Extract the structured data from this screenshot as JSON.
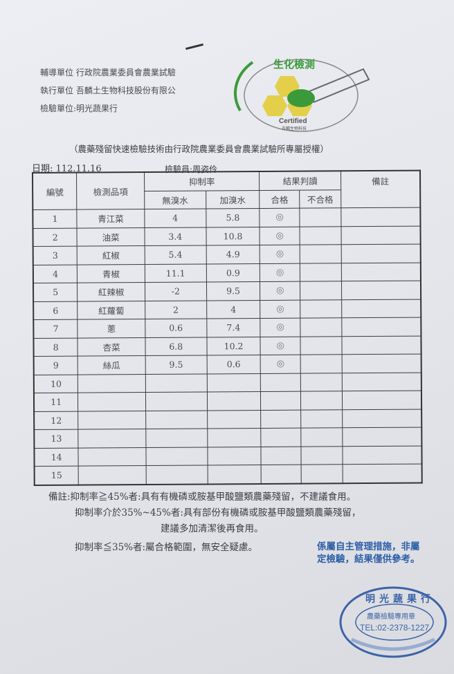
{
  "header": {
    "units": [
      {
        "label": "輔導單位",
        "value": "行政院農業委員會農業試驗"
      },
      {
        "label": "執行單位",
        "value": "吾麟土生物科技股份有限公"
      },
      {
        "label": "檢驗單位:",
        "value": "明光蔬果行"
      }
    ],
    "logo": {
      "title": "生化檢測",
      "certified": "Certified",
      "company": "吾麟生物科技"
    },
    "authorization": "（農藥殘留快速檢驗技術由行政院農業委員會農業試驗所專屬授權）",
    "date_label": "日期:",
    "date": "112.11.16",
    "inspector_label": "檢驗員:",
    "inspector": "周姿伶"
  },
  "table": {
    "headers": {
      "no": "編號",
      "item": "檢測品項",
      "inhibition": "抑制率",
      "no_bromine": "無溴水",
      "with_bromine": "加溴水",
      "result": "結果判讀",
      "pass": "合格",
      "fail": "不合格",
      "remarks": "備註"
    },
    "rows": [
      {
        "no": "1",
        "item": "青江菜",
        "no_bromine": "4",
        "with_bromine": "5.8",
        "pass": "◎",
        "fail": "",
        "remarks": ""
      },
      {
        "no": "2",
        "item": "油菜",
        "no_bromine": "3.4",
        "with_bromine": "10.8",
        "pass": "◎",
        "fail": "",
        "remarks": ""
      },
      {
        "no": "3",
        "item": "紅椒",
        "no_bromine": "5.4",
        "with_bromine": "4.9",
        "pass": "◎",
        "fail": "",
        "remarks": ""
      },
      {
        "no": "4",
        "item": "青椒",
        "no_bromine": "11.1",
        "with_bromine": "0.9",
        "pass": "◎",
        "fail": "",
        "remarks": ""
      },
      {
        "no": "5",
        "item": "紅辣椒",
        "no_bromine": "-2",
        "with_bromine": "9.5",
        "pass": "◎",
        "fail": "",
        "remarks": ""
      },
      {
        "no": "6",
        "item": "紅蘿蔔",
        "no_bromine": "2",
        "with_bromine": "4",
        "pass": "◎",
        "fail": "",
        "remarks": ""
      },
      {
        "no": "7",
        "item": "蔥",
        "no_bromine": "0.6",
        "with_bromine": "7.4",
        "pass": "◎",
        "fail": "",
        "remarks": ""
      },
      {
        "no": "8",
        "item": "杏菜",
        "no_bromine": "6.8",
        "with_bromine": "10.2",
        "pass": "◎",
        "fail": "",
        "remarks": ""
      },
      {
        "no": "9",
        "item": "絲瓜",
        "no_bromine": "9.5",
        "with_bromine": "0.6",
        "pass": "◎",
        "fail": "",
        "remarks": ""
      },
      {
        "no": "10",
        "item": "",
        "no_bromine": "",
        "with_bromine": "",
        "pass": "",
        "fail": "",
        "remarks": ""
      },
      {
        "no": "11",
        "item": "",
        "no_bromine": "",
        "with_bromine": "",
        "pass": "",
        "fail": "",
        "remarks": ""
      },
      {
        "no": "12",
        "item": "",
        "no_bromine": "",
        "with_bromine": "",
        "pass": "",
        "fail": "",
        "remarks": ""
      },
      {
        "no": "13",
        "item": "",
        "no_bromine": "",
        "with_bromine": "",
        "pass": "",
        "fail": "",
        "remarks": ""
      },
      {
        "no": "14",
        "item": "",
        "no_bromine": "",
        "with_bromine": "",
        "pass": "",
        "fail": "",
        "remarks": ""
      },
      {
        "no": "15",
        "item": "",
        "no_bromine": "",
        "with_bromine": "",
        "pass": "",
        "fail": "",
        "remarks": ""
      }
    ]
  },
  "notes": [
    "備註:抑制率≧45%者:具有有機磷或胺基甲酸鹽類農藥殘留，不建議食用。",
    "抑制率介於35%~45%者:具有部份有機磷或胺基甲酸鹽類農藥殘留，",
    "建議多加清潔後再食用。",
    "抑制率≦35%者:屬合格範圍，無安全疑慮。"
  ],
  "disclaimer": [
    "係屬自主管理措施，非屬",
    "定檢驗，結果僅供參考。"
  ],
  "stamp": {
    "name": "明光蔬果行",
    "purpose": "農藥檢驗專用章",
    "tel": "TEL:02-2378-1227"
  },
  "colors": {
    "ink_blue": "#2e5fa8",
    "logo_green": "#3a9a3a",
    "logo_yellow": "#e3cf4a"
  }
}
